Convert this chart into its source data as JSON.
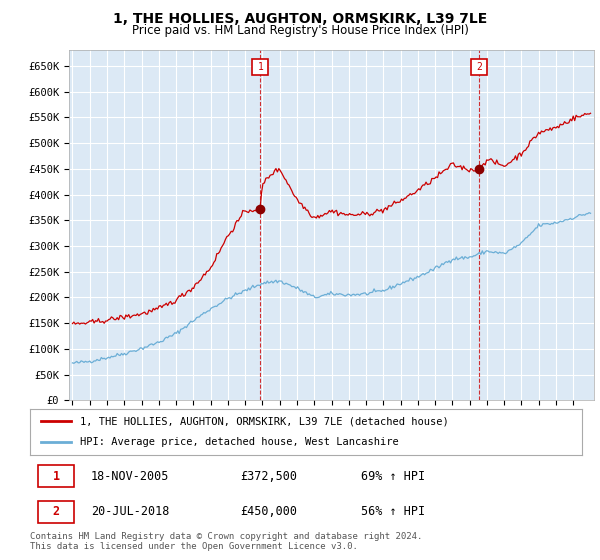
{
  "title": "1, THE HOLLIES, AUGHTON, ORMSKIRK, L39 7LE",
  "subtitle": "Price paid vs. HM Land Registry's House Price Index (HPI)",
  "ylim": [
    0,
    680000
  ],
  "yticks": [
    0,
    50000,
    100000,
    150000,
    200000,
    250000,
    300000,
    350000,
    400000,
    450000,
    500000,
    550000,
    600000,
    650000
  ],
  "ytick_labels": [
    "£0",
    "£50K",
    "£100K",
    "£150K",
    "£200K",
    "£250K",
    "£300K",
    "£350K",
    "£400K",
    "£450K",
    "£500K",
    "£550K",
    "£600K",
    "£650K"
  ],
  "hpi_color": "#6baed6",
  "price_color": "#cc0000",
  "sale1_year": 2005.88,
  "sale1_price": 372500,
  "sale2_year": 2018.54,
  "sale2_price": 450000,
  "legend_line1": "1, THE HOLLIES, AUGHTON, ORMSKIRK, L39 7LE (detached house)",
  "legend_line2": "HPI: Average price, detached house, West Lancashire",
  "table_row1": [
    "1",
    "18-NOV-2005",
    "£372,500",
    "69% ↑ HPI"
  ],
  "table_row2": [
    "2",
    "20-JUL-2018",
    "£450,000",
    "56% ↑ HPI"
  ],
  "footnote1": "Contains HM Land Registry data © Crown copyright and database right 2024.",
  "footnote2": "This data is licensed under the Open Government Licence v3.0.",
  "background_color": "#ffffff",
  "plot_bg_color": "#dce9f5",
  "grid_color": "#ffffff"
}
